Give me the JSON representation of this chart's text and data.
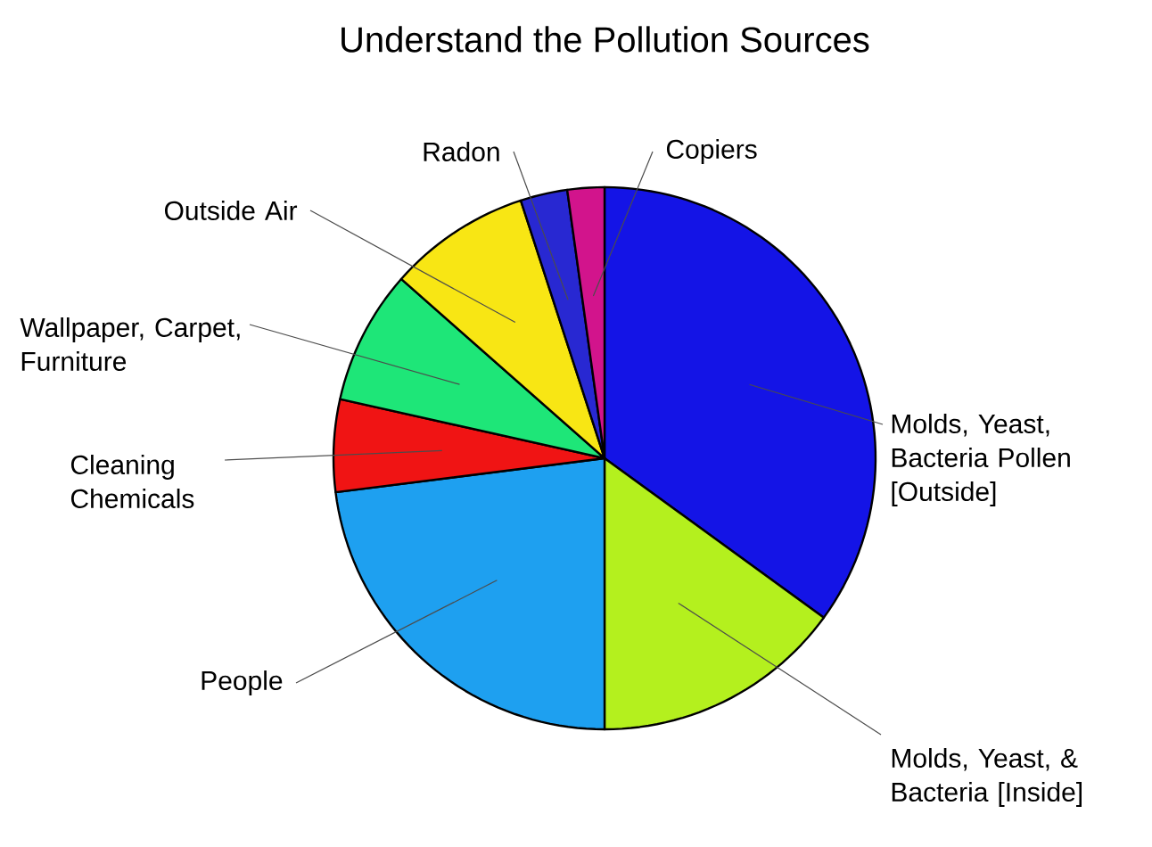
{
  "chart_data": {
    "type": "pie",
    "title": "Understand the Pollution Sources",
    "categories": [
      "Molds, Yeast, Bacteria Pollen [Outside]",
      "Molds, Yeast, & Bacteria [Inside]",
      "People",
      "Cleaning Chemicals",
      "Wallpaper, Carpet, Furniture",
      "Outside Air",
      "Radon",
      "Copiers"
    ],
    "values": [
      35,
      15,
      23,
      5.5,
      8,
      8.5,
      2.8,
      2.2
    ],
    "colors": [
      "#1414e6",
      "#b4f01e",
      "#1ea0f0",
      "#f01414",
      "#1ee678",
      "#f8e614",
      "#2828d2",
      "#d2148c"
    ]
  }
}
